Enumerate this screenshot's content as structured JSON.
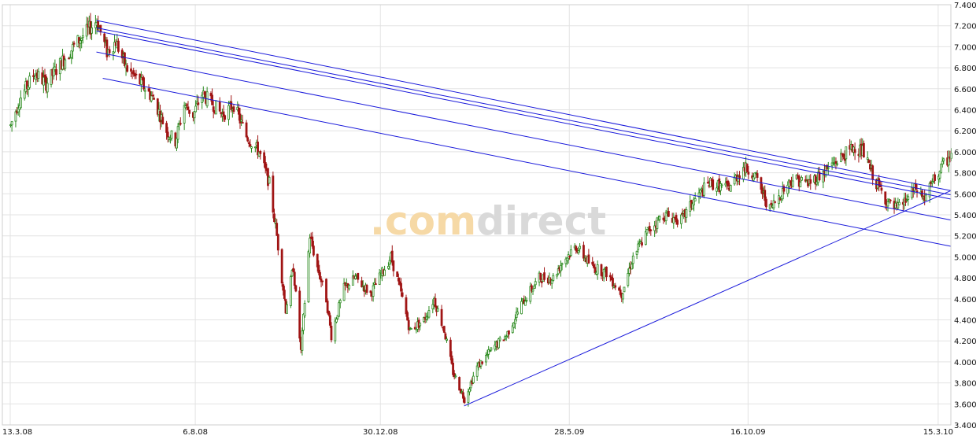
{
  "watermark": {
    "prefix": ".com",
    "suffix": "direct",
    "prefix_color": "#f6d9a6",
    "suffix_color": "#d9d9d9"
  },
  "colors": {
    "up": "#2a8a1e",
    "down": "#a01515",
    "trendline": "#1a1adb",
    "grid": "#e3e3e3",
    "frame": "#cfcfcf"
  },
  "chart_data": {
    "type": "candlestick",
    "title": "",
    "xlabel": "",
    "ylabel": "",
    "x_axis": {
      "type": "date",
      "range": [
        "2008-03-13",
        "2010-03-25"
      ],
      "ticks": [
        {
          "date": "2008-03-13",
          "label": "13.3.08"
        },
        {
          "date": "2008-08-06",
          "label": "6.8.08"
        },
        {
          "date": "2008-12-30",
          "label": "30.12.08"
        },
        {
          "date": "2009-05-28",
          "label": "28.5.09"
        },
        {
          "date": "2009-10-16",
          "label": "16.10.09"
        },
        {
          "date": "2010-03-15",
          "label": "15.3.10"
        }
      ]
    },
    "y_axis": {
      "position": "right",
      "range": [
        3400,
        7400
      ],
      "ticks": [
        {
          "value": 3400,
          "label": "3.400"
        },
        {
          "value": 3600,
          "label": "3.600"
        },
        {
          "value": 3800,
          "label": "3.800"
        },
        {
          "value": 4000,
          "label": "4.000"
        },
        {
          "value": 4200,
          "label": "4.200"
        },
        {
          "value": 4400,
          "label": "4.400"
        },
        {
          "value": 4600,
          "label": "4.600"
        },
        {
          "value": 4800,
          "label": "4.800"
        },
        {
          "value": 5000,
          "label": "5.000"
        },
        {
          "value": 5200,
          "label": "5.200"
        },
        {
          "value": 5400,
          "label": "5.400"
        },
        {
          "value": 5600,
          "label": "5.600"
        },
        {
          "value": 5800,
          "label": "5.800"
        },
        {
          "value": 6000,
          "label": "6.000"
        },
        {
          "value": 6200,
          "label": "6.200"
        },
        {
          "value": 6400,
          "label": "6.400"
        },
        {
          "value": 6600,
          "label": "6.600"
        },
        {
          "value": 6800,
          "label": "6.800"
        },
        {
          "value": 7000,
          "label": "7.000"
        },
        {
          "value": 7200,
          "label": "7.200"
        },
        {
          "value": 7400,
          "label": "7.400"
        }
      ]
    },
    "grid": true,
    "legend": "none",
    "price_path": [
      [
        "2008-03-13",
        6250
      ],
      [
        "2008-03-20",
        6500
      ],
      [
        "2008-04-01",
        6750
      ],
      [
        "2008-04-10",
        6650
      ],
      [
        "2008-04-22",
        6850
      ],
      [
        "2008-05-05",
        7050
      ],
      [
        "2008-05-20",
        7250
      ],
      [
        "2008-05-28",
        6950
      ],
      [
        "2008-06-04",
        7050
      ],
      [
        "2008-06-12",
        6800
      ],
      [
        "2008-06-24",
        6650
      ],
      [
        "2008-07-04",
        6500
      ],
      [
        "2008-07-14",
        6200
      ],
      [
        "2008-07-21",
        6100
      ],
      [
        "2008-07-28",
        6450
      ],
      [
        "2008-08-04",
        6350
      ],
      [
        "2008-08-11",
        6550
      ],
      [
        "2008-08-20",
        6450
      ],
      [
        "2008-08-27",
        6350
      ],
      [
        "2008-09-05",
        6450
      ],
      [
        "2008-09-15",
        6150
      ],
      [
        "2008-09-25",
        6000
      ],
      [
        "2008-10-03",
        5700
      ],
      [
        "2008-10-09",
        5200
      ],
      [
        "2008-10-16",
        4500
      ],
      [
        "2008-10-22",
        4900
      ],
      [
        "2008-10-28",
        4100
      ],
      [
        "2008-11-04",
        5200
      ],
      [
        "2008-11-10",
        4900
      ],
      [
        "2008-11-17",
        4600
      ],
      [
        "2008-11-21",
        4250
      ],
      [
        "2008-12-01",
        4700
      ],
      [
        "2008-12-10",
        4800
      ],
      [
        "2008-12-22",
        4650
      ],
      [
        "2009-01-07",
        5000
      ],
      [
        "2009-01-14",
        4700
      ],
      [
        "2009-01-22",
        4300
      ],
      [
        "2009-02-02",
        4400
      ],
      [
        "2009-02-10",
        4600
      ],
      [
        "2009-02-18",
        4300
      ],
      [
        "2009-02-25",
        3900
      ],
      [
        "2009-03-06",
        3650
      ],
      [
        "2009-03-16",
        3950
      ],
      [
        "2009-03-30",
        4150
      ],
      [
        "2009-04-08",
        4250
      ],
      [
        "2009-04-20",
        4550
      ],
      [
        "2009-05-04",
        4800
      ],
      [
        "2009-05-15",
        4800
      ],
      [
        "2009-05-22",
        4950
      ],
      [
        "2009-06-02",
        5100
      ],
      [
        "2009-06-15",
        4900
      ],
      [
        "2009-06-26",
        4850
      ],
      [
        "2009-07-08",
        4650
      ],
      [
        "2009-07-17",
        5000
      ],
      [
        "2009-07-29",
        5250
      ],
      [
        "2009-08-10",
        5400
      ],
      [
        "2009-08-24",
        5350
      ],
      [
        "2009-09-04",
        5550
      ],
      [
        "2009-09-15",
        5700
      ],
      [
        "2009-09-30",
        5650
      ],
      [
        "2009-10-12",
        5850
      ],
      [
        "2009-10-20",
        5800
      ],
      [
        "2009-11-02",
        5450
      ],
      [
        "2009-11-10",
        5600
      ],
      [
        "2009-11-20",
        5750
      ],
      [
        "2009-12-02",
        5700
      ],
      [
        "2009-12-14",
        5800
      ],
      [
        "2009-12-28",
        5950
      ],
      [
        "2010-01-08",
        6050
      ],
      [
        "2010-01-14",
        6000
      ],
      [
        "2010-01-25",
        5700
      ],
      [
        "2010-02-04",
        5500
      ],
      [
        "2010-02-10",
        5450
      ],
      [
        "2010-02-18",
        5550
      ],
      [
        "2010-02-25",
        5650
      ],
      [
        "2010-03-04",
        5550
      ],
      [
        "2010-03-12",
        5750
      ],
      [
        "2010-03-25",
        5980
      ]
    ],
    "trendlines": [
      {
        "from": [
          "2008-05-20",
          7250
        ],
        "to": [
          "2010-03-25",
          5630
        ]
      },
      {
        "from": [
          "2008-05-20",
          7180
        ],
        "to": [
          "2010-03-25",
          5590
        ]
      },
      {
        "from": [
          "2008-05-20",
          7150
        ],
        "to": [
          "2010-03-25",
          5550
        ]
      },
      {
        "from": [
          "2008-05-20",
          6950
        ],
        "to": [
          "2010-03-25",
          5350
        ]
      },
      {
        "from": [
          "2008-05-25",
          6700
        ],
        "to": [
          "2010-03-25",
          5100
        ]
      },
      {
        "from": [
          "2009-03-06",
          3580
        ],
        "to": [
          "2010-03-25",
          5630
        ]
      }
    ]
  }
}
